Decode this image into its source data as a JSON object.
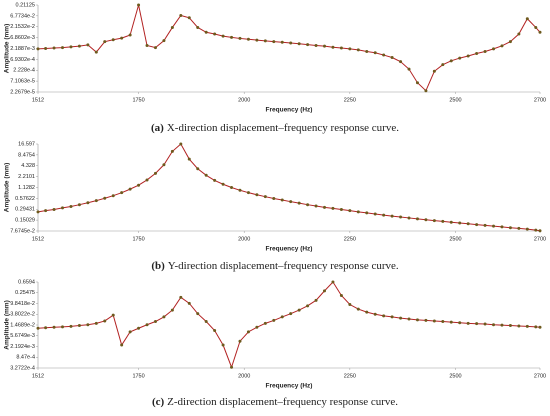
{
  "chart_data": [
    {
      "type": "line",
      "caption_label": "(a)",
      "caption": "X-direction displacement–frequency response curve.",
      "xlabel": "Frequency (Hz)",
      "ylabel": "Amplitude (mm)",
      "log_y": true,
      "xlim": [
        1512,
        2700
      ],
      "xticks": [
        1512,
        1750,
        2000,
        2250,
        2500,
        2700
      ],
      "ylim": [
        2.2679e-05,
        0.21125
      ],
      "yticks": [
        {
          "value": 2.2679e-05,
          "label": "2.2679e-5"
        },
        {
          "value": 7.1063e-05,
          "label": "7.1063e-5"
        },
        {
          "value": 0.0002228,
          "label": "2.228e-4"
        },
        {
          "value": 0.00069302,
          "label": "6.9302e-4"
        },
        {
          "value": 0.0021887,
          "label": "2.1887e-3"
        },
        {
          "value": 0.0068602,
          "label": "6.8602e-3"
        },
        {
          "value": 0.021532,
          "label": "2.1532e-2"
        },
        {
          "value": 0.067734,
          "label": "6.7734e-2"
        },
        0.21125
      ],
      "color": "#b22222",
      "marker_color": "#6e5a1e",
      "x": [
        1512,
        1530,
        1550,
        1570,
        1590,
        1610,
        1630,
        1650,
        1670,
        1690,
        1710,
        1730,
        1750,
        1770,
        1790,
        1810,
        1830,
        1850,
        1870,
        1890,
        1910,
        1930,
        1950,
        1970,
        1990,
        2010,
        2030,
        2050,
        2070,
        2090,
        2110,
        2130,
        2150,
        2170,
        2190,
        2210,
        2230,
        2250,
        2270,
        2290,
        2310,
        2330,
        2350,
        2370,
        2390,
        2410,
        2430,
        2450,
        2470,
        2490,
        2510,
        2530,
        2550,
        2570,
        2590,
        2610,
        2630,
        2650,
        2670,
        2690,
        2700
      ],
      "values": [
        0.0021,
        0.0022,
        0.0023,
        0.0024,
        0.0026,
        0.0028,
        0.0032,
        0.0015,
        0.0045,
        0.0055,
        0.0065,
        0.009,
        0.21125,
        0.003,
        0.0024,
        0.005,
        0.02,
        0.07,
        0.055,
        0.02,
        0.012,
        0.01,
        0.008,
        0.007,
        0.0063,
        0.0058,
        0.0053,
        0.0049,
        0.0045,
        0.0042,
        0.0039,
        0.0036,
        0.0033,
        0.003,
        0.0028,
        0.0025,
        0.0023,
        0.0021,
        0.0019,
        0.0016,
        0.0014,
        0.0011,
        0.00085,
        0.00055,
        0.00025,
        6e-05,
        2.6e-05,
        0.0002,
        0.0004,
        0.0006,
        0.0008,
        0.001,
        0.0013,
        0.0016,
        0.0021,
        0.0029,
        0.0045,
        0.01,
        0.05,
        0.02,
        0.012
      ]
    },
    {
      "type": "line",
      "caption_label": "(b)",
      "caption": "Y-direction displacement–frequency response curve.",
      "xlabel": "Frequency (Hz)",
      "ylabel": "Amplitude (mm)",
      "log_y": true,
      "xlim": [
        1512,
        2700
      ],
      "xticks": [
        1512,
        1750,
        2000,
        2250,
        2500,
        2700
      ],
      "ylim": [
        0.076745,
        16.597
      ],
      "yticks": [
        {
          "value": 0.076745,
          "label": "7.6745e-2"
        },
        0.15029,
        0.29431,
        0.57622,
        1.1282,
        2.2101,
        4.328,
        8.4754,
        16.597
      ],
      "color": "#b22222",
      "marker_color": "#6e5a1e",
      "x": [
        1512,
        1530,
        1550,
        1570,
        1590,
        1610,
        1630,
        1650,
        1670,
        1690,
        1710,
        1730,
        1750,
        1770,
        1790,
        1810,
        1830,
        1850,
        1870,
        1890,
        1910,
        1930,
        1950,
        1970,
        1990,
        2010,
        2030,
        2050,
        2070,
        2090,
        2110,
        2130,
        2150,
        2170,
        2190,
        2210,
        2230,
        2250,
        2270,
        2290,
        2310,
        2330,
        2350,
        2370,
        2390,
        2410,
        2430,
        2450,
        2470,
        2490,
        2510,
        2530,
        2550,
        2570,
        2590,
        2610,
        2630,
        2650,
        2670,
        2690,
        2700
      ],
      "values": [
        0.25,
        0.27,
        0.29,
        0.32,
        0.35,
        0.39,
        0.44,
        0.5,
        0.58,
        0.68,
        0.82,
        1.02,
        1.3,
        1.8,
        2.7,
        4.6,
        10.5,
        16.597,
        6.5,
        3.6,
        2.4,
        1.75,
        1.38,
        1.13,
        0.95,
        0.82,
        0.72,
        0.64,
        0.57,
        0.52,
        0.47,
        0.43,
        0.39,
        0.36,
        0.33,
        0.31,
        0.29,
        0.27,
        0.25,
        0.235,
        0.22,
        0.205,
        0.193,
        0.182,
        0.172,
        0.162,
        0.154,
        0.146,
        0.139,
        0.132,
        0.126,
        0.12,
        0.114,
        0.109,
        0.104,
        0.099,
        0.094,
        0.09,
        0.086,
        0.081,
        0.078
      ]
    },
    {
      "type": "line",
      "caption_label": "(c)",
      "caption": "Z-direction displacement–frequency response curve.",
      "xlabel": "Frequency (Hz)",
      "ylabel": "Amplitude (mm)",
      "log_y": true,
      "xlim": [
        1512,
        2700
      ],
      "xticks": [
        1512,
        1750,
        2000,
        2250,
        2500,
        2700
      ],
      "ylim": [
        0.00032722,
        0.6594
      ],
      "yticks": [
        {
          "value": 0.00032722,
          "label": "3.2722e-4"
        },
        {
          "value": 0.000847,
          "label": "8.47e-4"
        },
        {
          "value": 0.0021924,
          "label": "2.1924e-3"
        },
        {
          "value": 0.0056749,
          "label": "5.6749e-3"
        },
        {
          "value": 0.014689,
          "label": "1.4689e-2"
        },
        {
          "value": 0.038022,
          "label": "3.8022e-2"
        },
        {
          "value": 0.098418,
          "label": "9.8418e-2"
        },
        0.25475,
        0.6594
      ],
      "color": "#b22222",
      "marker_color": "#6e5a1e",
      "x": [
        1512,
        1530,
        1550,
        1570,
        1590,
        1610,
        1630,
        1650,
        1670,
        1690,
        1710,
        1730,
        1750,
        1770,
        1790,
        1810,
        1830,
        1850,
        1870,
        1890,
        1910,
        1930,
        1950,
        1970,
        1990,
        2010,
        2030,
        2050,
        2070,
        2090,
        2110,
        2130,
        2150,
        2170,
        2190,
        2210,
        2230,
        2250,
        2270,
        2290,
        2310,
        2330,
        2350,
        2370,
        2390,
        2410,
        2430,
        2450,
        2470,
        2490,
        2510,
        2530,
        2550,
        2570,
        2590,
        2610,
        2630,
        2650,
        2670,
        2690,
        2700
      ],
      "values": [
        0.011,
        0.0115,
        0.012,
        0.0125,
        0.013,
        0.014,
        0.015,
        0.017,
        0.021,
        0.035,
        0.0025,
        0.008,
        0.011,
        0.015,
        0.02,
        0.03,
        0.055,
        0.17,
        0.1,
        0.04,
        0.02,
        0.009,
        0.0025,
        0.00035,
        0.0035,
        0.008,
        0.012,
        0.017,
        0.022,
        0.03,
        0.04,
        0.055,
        0.08,
        0.13,
        0.3,
        0.6594,
        0.2,
        0.09,
        0.06,
        0.046,
        0.038,
        0.033,
        0.03,
        0.027,
        0.025,
        0.023,
        0.022,
        0.021,
        0.02,
        0.019,
        0.018,
        0.017,
        0.0165,
        0.016,
        0.015,
        0.0145,
        0.014,
        0.0135,
        0.013,
        0.0125,
        0.012
      ]
    }
  ]
}
